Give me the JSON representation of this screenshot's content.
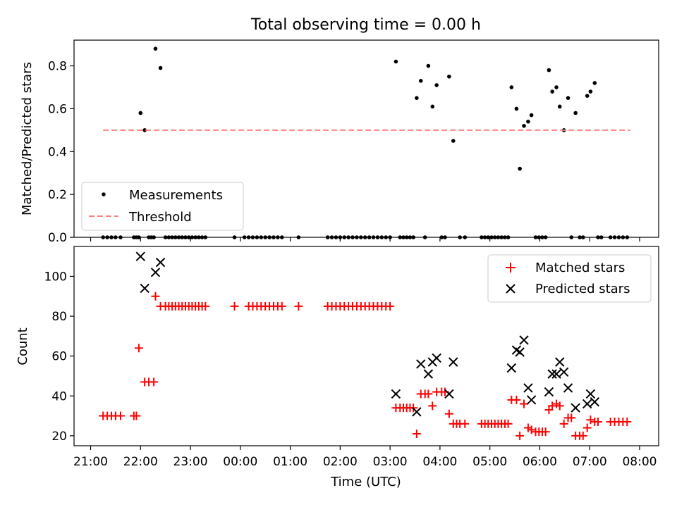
{
  "chart_data": [
    {
      "type": "scatter",
      "title": "Total observing time = 0.00 h",
      "xlabel": "",
      "ylabel": "Matched/Predicted stars",
      "ylim": [
        0,
        0.92
      ],
      "y_ticks": [
        "0.0",
        "0.2",
        "0.4",
        "0.6",
        "0.8"
      ],
      "x_ticks": [
        "21:00",
        "22:00",
        "23:00",
        "00:00",
        "01:00",
        "02:00",
        "03:00",
        "04:00",
        "05:00",
        "06:00",
        "07:00",
        "08:00"
      ],
      "x_tick_labels_visible": false,
      "legend_position": "lower-left",
      "grid": false,
      "series": [
        {
          "name": "Measurements",
          "color": "#000000",
          "marker": "dot",
          "points": [
            [
              "21:15",
              0
            ],
            [
              "21:20",
              0
            ],
            [
              "21:25",
              0
            ],
            [
              "21:30",
              0
            ],
            [
              "21:36",
              0
            ],
            [
              "21:52",
              0
            ],
            [
              "21:55",
              0
            ],
            [
              "21:58",
              0
            ],
            [
              "22:00",
              0.58
            ],
            [
              "22:05",
              0.5
            ],
            [
              "22:10",
              0
            ],
            [
              "22:13",
              0
            ],
            [
              "22:16",
              0
            ],
            [
              "22:18",
              0.88
            ],
            [
              "22:24",
              0.79
            ],
            [
              "22:30",
              0
            ],
            [
              "22:34",
              0
            ],
            [
              "22:38",
              0
            ],
            [
              "22:42",
              0
            ],
            [
              "22:46",
              0
            ],
            [
              "22:50",
              0
            ],
            [
              "22:54",
              0
            ],
            [
              "22:58",
              0
            ],
            [
              "23:02",
              0
            ],
            [
              "23:06",
              0
            ],
            [
              "23:10",
              0
            ],
            [
              "23:14",
              0
            ],
            [
              "23:18",
              0
            ],
            [
              "23:53",
              0
            ],
            [
              "00:05",
              0
            ],
            [
              "00:10",
              0
            ],
            [
              "00:15",
              0
            ],
            [
              "00:20",
              0
            ],
            [
              "00:25",
              0
            ],
            [
              "00:30",
              0
            ],
            [
              "00:35",
              0
            ],
            [
              "00:40",
              0
            ],
            [
              "00:45",
              0
            ],
            [
              "00:50",
              0
            ],
            [
              "01:10",
              0
            ],
            [
              "01:45",
              0
            ],
            [
              "01:50",
              0
            ],
            [
              "01:55",
              0
            ],
            [
              "02:00",
              0
            ],
            [
              "02:05",
              0
            ],
            [
              "02:10",
              0
            ],
            [
              "02:15",
              0
            ],
            [
              "02:20",
              0
            ],
            [
              "02:25",
              0
            ],
            [
              "02:30",
              0
            ],
            [
              "02:35",
              0
            ],
            [
              "02:40",
              0
            ],
            [
              "02:45",
              0
            ],
            [
              "02:50",
              0
            ],
            [
              "02:55",
              0
            ],
            [
              "03:00",
              0
            ],
            [
              "03:07",
              0.82
            ],
            [
              "03:12",
              0
            ],
            [
              "03:16",
              0
            ],
            [
              "03:20",
              0
            ],
            [
              "03:24",
              0
            ],
            [
              "03:28",
              0
            ],
            [
              "03:32",
              0.65
            ],
            [
              "03:37",
              0.73
            ],
            [
              "03:42",
              0
            ],
            [
              "03:46",
              0.8
            ],
            [
              "03:51",
              0.61
            ],
            [
              "03:56",
              0.71
            ],
            [
              "04:02",
              0
            ],
            [
              "04:06",
              0
            ],
            [
              "04:11",
              0.75
            ],
            [
              "04:16",
              0.45
            ],
            [
              "04:24",
              0
            ],
            [
              "04:30",
              0
            ],
            [
              "04:50",
              0
            ],
            [
              "04:54",
              0
            ],
            [
              "04:58",
              0
            ],
            [
              "05:02",
              0
            ],
            [
              "05:06",
              0
            ],
            [
              "05:10",
              0
            ],
            [
              "05:14",
              0
            ],
            [
              "05:18",
              0
            ],
            [
              "05:22",
              0
            ],
            [
              "05:26",
              0.7
            ],
            [
              "05:32",
              0.6
            ],
            [
              "05:36",
              0.32
            ],
            [
              "05:41",
              0.52
            ],
            [
              "05:46",
              0.54
            ],
            [
              "05:50",
              0.57
            ],
            [
              "05:55",
              0
            ],
            [
              "05:59",
              0
            ],
            [
              "06:03",
              0
            ],
            [
              "06:07",
              0
            ],
            [
              "06:11",
              0.78
            ],
            [
              "06:15",
              0.68
            ],
            [
              "06:20",
              0.7
            ],
            [
              "06:24",
              0.61
            ],
            [
              "06:29",
              0.5
            ],
            [
              "06:34",
              0.65
            ],
            [
              "06:38",
              0
            ],
            [
              "06:43",
              0.58
            ],
            [
              "06:48",
              0
            ],
            [
              "06:52",
              0
            ],
            [
              "06:57",
              0.66
            ],
            [
              "07:01",
              0.68
            ],
            [
              "07:06",
              0.72
            ],
            [
              "07:10",
              0
            ],
            [
              "07:14",
              0
            ],
            [
              "07:25",
              0
            ],
            [
              "07:30",
              0
            ],
            [
              "07:35",
              0
            ],
            [
              "07:40",
              0
            ],
            [
              "07:45",
              0
            ]
          ]
        },
        {
          "name": "Threshold",
          "color": "#ff7f7f",
          "style": "dashed",
          "x": [
            "21:15",
            "07:49"
          ],
          "values": [
            0.5,
            0.5
          ]
        }
      ]
    },
    {
      "type": "scatter",
      "title": "",
      "xlabel": "Time (UTC)",
      "ylabel": "Count",
      "ylim": [
        15,
        115
      ],
      "y_ticks": [
        "20",
        "40",
        "60",
        "80",
        "100"
      ],
      "x_ticks": [
        "21:00",
        "22:00",
        "23:00",
        "00:00",
        "01:00",
        "02:00",
        "03:00",
        "04:00",
        "05:00",
        "06:00",
        "07:00",
        "08:00"
      ],
      "legend_position": "top-right",
      "grid": false,
      "series": [
        {
          "name": "Matched stars",
          "color": "#ff0000",
          "marker": "+",
          "points": [
            [
              "21:15",
              30
            ],
            [
              "21:20",
              30
            ],
            [
              "21:25",
              30
            ],
            [
              "21:30",
              30
            ],
            [
              "21:36",
              30
            ],
            [
              "21:52",
              30
            ],
            [
              "21:55",
              30
            ],
            [
              "21:58",
              64
            ],
            [
              "22:05",
              47
            ],
            [
              "22:10",
              47
            ],
            [
              "22:16",
              47
            ],
            [
              "22:18",
              90
            ],
            [
              "22:24",
              85
            ],
            [
              "22:30",
              85
            ],
            [
              "22:34",
              85
            ],
            [
              "22:38",
              85
            ],
            [
              "22:42",
              85
            ],
            [
              "22:46",
              85
            ],
            [
              "22:50",
              85
            ],
            [
              "22:54",
              85
            ],
            [
              "22:58",
              85
            ],
            [
              "23:02",
              85
            ],
            [
              "23:06",
              85
            ],
            [
              "23:10",
              85
            ],
            [
              "23:14",
              85
            ],
            [
              "23:18",
              85
            ],
            [
              "23:53",
              85
            ],
            [
              "00:10",
              85
            ],
            [
              "00:15",
              85
            ],
            [
              "00:20",
              85
            ],
            [
              "00:25",
              85
            ],
            [
              "00:30",
              85
            ],
            [
              "00:35",
              85
            ],
            [
              "00:40",
              85
            ],
            [
              "00:45",
              85
            ],
            [
              "00:50",
              85
            ],
            [
              "01:10",
              85
            ],
            [
              "01:45",
              85
            ],
            [
              "01:50",
              85
            ],
            [
              "01:55",
              85
            ],
            [
              "02:00",
              85
            ],
            [
              "02:05",
              85
            ],
            [
              "02:10",
              85
            ],
            [
              "02:15",
              85
            ],
            [
              "02:20",
              85
            ],
            [
              "02:25",
              85
            ],
            [
              "02:30",
              85
            ],
            [
              "02:35",
              85
            ],
            [
              "02:40",
              85
            ],
            [
              "02:45",
              85
            ],
            [
              "02:50",
              85
            ],
            [
              "02:55",
              85
            ],
            [
              "03:00",
              85
            ],
            [
              "03:07",
              34
            ],
            [
              "03:12",
              34
            ],
            [
              "03:16",
              34
            ],
            [
              "03:20",
              34
            ],
            [
              "03:24",
              34
            ],
            [
              "03:28",
              34
            ],
            [
              "03:32",
              21
            ],
            [
              "03:37",
              41
            ],
            [
              "03:42",
              41
            ],
            [
              "03:46",
              41
            ],
            [
              "03:51",
              35
            ],
            [
              "03:56",
              42
            ],
            [
              "04:02",
              42
            ],
            [
              "04:06",
              42
            ],
            [
              "04:11",
              31
            ],
            [
              "04:16",
              26
            ],
            [
              "04:20",
              26
            ],
            [
              "04:24",
              26
            ],
            [
              "04:30",
              26
            ],
            [
              "04:50",
              26
            ],
            [
              "04:54",
              26
            ],
            [
              "04:58",
              26
            ],
            [
              "05:02",
              26
            ],
            [
              "05:06",
              26
            ],
            [
              "05:10",
              26
            ],
            [
              "05:14",
              26
            ],
            [
              "05:18",
              26
            ],
            [
              "05:22",
              26
            ],
            [
              "05:26",
              38
            ],
            [
              "05:32",
              38
            ],
            [
              "05:36",
              20
            ],
            [
              "05:41",
              36
            ],
            [
              "05:46",
              24
            ],
            [
              "05:50",
              23
            ],
            [
              "05:55",
              22
            ],
            [
              "05:59",
              22
            ],
            [
              "06:03",
              22
            ],
            [
              "06:07",
              22
            ],
            [
              "06:11",
              33
            ],
            [
              "06:15",
              35
            ],
            [
              "06:20",
              36
            ],
            [
              "06:24",
              35
            ],
            [
              "06:29",
              26
            ],
            [
              "06:34",
              29
            ],
            [
              "06:38",
              29
            ],
            [
              "06:43",
              20
            ],
            [
              "06:48",
              20
            ],
            [
              "06:52",
              20
            ],
            [
              "06:57",
              24
            ],
            [
              "07:01",
              28
            ],
            [
              "07:06",
              27
            ],
            [
              "07:10",
              27
            ],
            [
              "07:25",
              27
            ],
            [
              "07:30",
              27
            ],
            [
              "07:35",
              27
            ],
            [
              "07:40",
              27
            ],
            [
              "07:45",
              27
            ]
          ]
        },
        {
          "name": "Predicted stars",
          "color": "#000000",
          "marker": "x",
          "points": [
            [
              "22:00",
              110
            ],
            [
              "22:05",
              94
            ],
            [
              "22:18",
              102
            ],
            [
              "22:24",
              107
            ],
            [
              "03:07",
              41
            ],
            [
              "03:32",
              32
            ],
            [
              "03:37",
              56
            ],
            [
              "03:46",
              51
            ],
            [
              "03:51",
              57
            ],
            [
              "03:56",
              59
            ],
            [
              "04:11",
              41
            ],
            [
              "04:16",
              57
            ],
            [
              "05:26",
              54
            ],
            [
              "05:32",
              63
            ],
            [
              "05:36",
              62
            ],
            [
              "05:41",
              68
            ],
            [
              "05:46",
              44
            ],
            [
              "05:50",
              38
            ],
            [
              "06:11",
              42
            ],
            [
              "06:15",
              51
            ],
            [
              "06:20",
              51
            ],
            [
              "06:24",
              57
            ],
            [
              "06:29",
              52
            ],
            [
              "06:34",
              44
            ],
            [
              "06:43",
              34
            ],
            [
              "06:57",
              36
            ],
            [
              "07:01",
              41
            ],
            [
              "07:06",
              37
            ]
          ]
        }
      ]
    }
  ]
}
